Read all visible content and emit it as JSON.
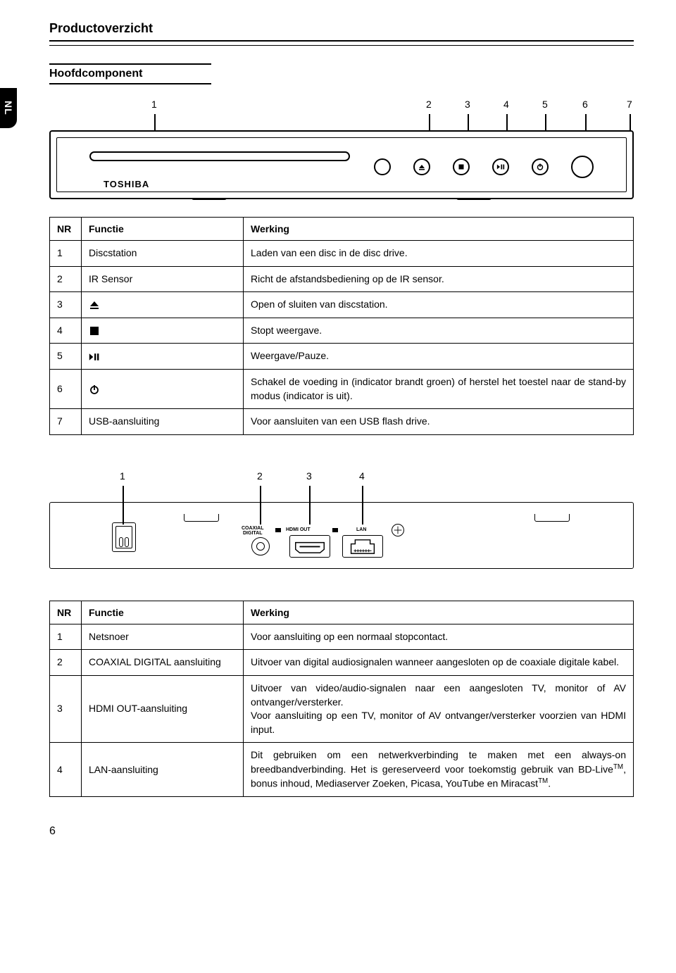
{
  "lang_tab": "NL",
  "page_title": "Productoverzicht",
  "subheading": "Hoofdcomponent",
  "logo": "TOSHIBA",
  "front_callouts": [
    "1",
    "2",
    "3",
    "4",
    "5",
    "6",
    "7"
  ],
  "rear_callouts": [
    "1",
    "2",
    "3",
    "4"
  ],
  "rear_labels": {
    "coaxial1": "COAXIAL",
    "coaxial2": "DIGITAL",
    "hdmi": "HDMI OUT",
    "lan": "LAN"
  },
  "table1": {
    "head": {
      "nr": "NR",
      "func": "Functie",
      "work": "Werking"
    },
    "rows": [
      {
        "nr": "1",
        "func": "Discstation",
        "work": "Laden van een disc in de disc drive."
      },
      {
        "nr": "2",
        "func": "IR Sensor",
        "work": "Richt de afstandsbediening op de IR sensor."
      },
      {
        "nr": "3",
        "func": "",
        "work": "Open of sluiten van discstation.",
        "icon": "eject"
      },
      {
        "nr": "4",
        "func": "",
        "work": "Stopt weergave.",
        "icon": "stop"
      },
      {
        "nr": "5",
        "func": "",
        "work": "Weergave/Pauze.",
        "icon": "playpause"
      },
      {
        "nr": "6",
        "func": "",
        "work": "Schakel de voeding in (indicator brandt groen) of herstel het toestel naar de stand-by modus (indicator is uit).",
        "icon": "power"
      },
      {
        "nr": "7",
        "func": "USB-aansluiting",
        "work": "Voor aansluiten van een USB flash drive."
      }
    ]
  },
  "table2": {
    "head": {
      "nr": "NR",
      "func": "Functie",
      "work": "Werking"
    },
    "rows": [
      {
        "nr": "1",
        "func": "Netsnoer",
        "work": "Voor aansluiting op een normaal stopcontact."
      },
      {
        "nr": "2",
        "func": "COAXIAL DIGITAL aansluiting",
        "work": "Uitvoer van digital audiosignalen wanneer aangesloten op de coaxiale digitale kabel."
      },
      {
        "nr": "3",
        "func": "HDMI OUT-aansluiting",
        "work": "Uitvoer van video/audio-signalen naar een aangesloten TV, monitor of AV ontvanger/versterker.\nVoor aansluiting op een TV, monitor of AV ontvanger/versterker voorzien van HDMI input."
      },
      {
        "nr": "4",
        "func": "LAN-aansluiting",
        "work_html": "Dit gebruiken om een netwerkverbinding te maken met een always-on breedbandverbinding. Het is gereserveerd voor toekomstig gebruik van BD-Live<sup>TM</sup>, bonus inhoud, Mediaserver Zoeken, Picasa, YouTube en Miracast<sup>TM</sup>."
      }
    ]
  },
  "page_number": "6"
}
